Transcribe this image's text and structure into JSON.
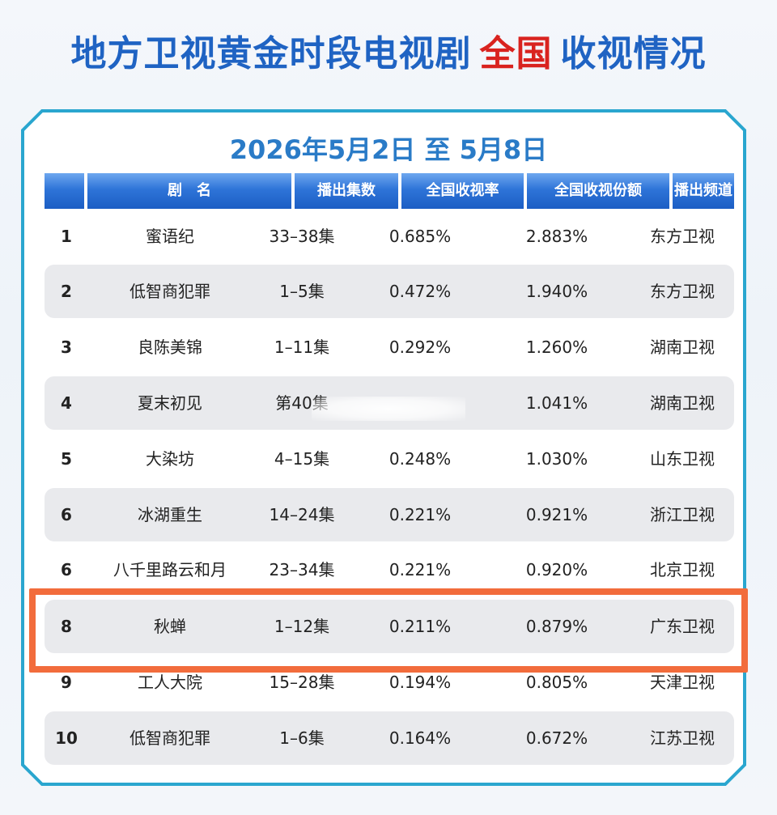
{
  "headline": {
    "part1": "地方卫视黄金时段电视剧",
    "part2": "全国",
    "part3": "收视情况",
    "accent_color": "#d9231f",
    "main_color": "#1f63c3"
  },
  "subtitle": "2026年5月2日 至 5月8日",
  "table": {
    "headers": {
      "rank": "",
      "title": "剧　名",
      "episodes": "播出集数",
      "rating": "全国收视率",
      "share": "全国收视份额",
      "channel": "播出频道"
    },
    "rows": [
      {
        "rank": "1",
        "title": "蜜语纪",
        "episodes": "33–38集",
        "rating": "0.685%",
        "share": "2.883%",
        "channel": "东方卫视"
      },
      {
        "rank": "2",
        "title": "低智商犯罪",
        "episodes": "1–5集",
        "rating": "0.472%",
        "share": "1.940%",
        "channel": "东方卫视"
      },
      {
        "rank": "3",
        "title": "良陈美锦",
        "episodes": "1–11集",
        "rating": "0.292%",
        "share": "1.260%",
        "channel": "湖南卫视"
      },
      {
        "rank": "4",
        "title": "夏末初见",
        "episodes": "第40集",
        "rating": "",
        "share": "1.041%",
        "channel": "湖南卫视"
      },
      {
        "rank": "5",
        "title": "大染坊",
        "episodes": "4–15集",
        "rating": "0.248%",
        "share": "1.030%",
        "channel": "山东卫视"
      },
      {
        "rank": "6",
        "title": "冰湖重生",
        "episodes": "14–24集",
        "rating": "0.221%",
        "share": "0.921%",
        "channel": "浙江卫视"
      },
      {
        "rank": "6",
        "title": "八千里路云和月",
        "episodes": "23–34集",
        "rating": "0.221%",
        "share": "0.920%",
        "channel": "北京卫视"
      },
      {
        "rank": "8",
        "title": "秋蝉",
        "episodes": "1–12集",
        "rating": "0.211%",
        "share": "0.879%",
        "channel": "广东卫视"
      },
      {
        "rank": "9",
        "title": "工人大院",
        "episodes": "15–28集",
        "rating": "0.194%",
        "share": "0.805%",
        "channel": "天津卫视"
      },
      {
        "rank": "10",
        "title": "低智商犯罪",
        "episodes": "1–6集",
        "rating": "0.164%",
        "share": "0.672%",
        "channel": "江苏卫视"
      }
    ],
    "highlighted_row": 8,
    "highlight_color": "#f26c3c"
  }
}
